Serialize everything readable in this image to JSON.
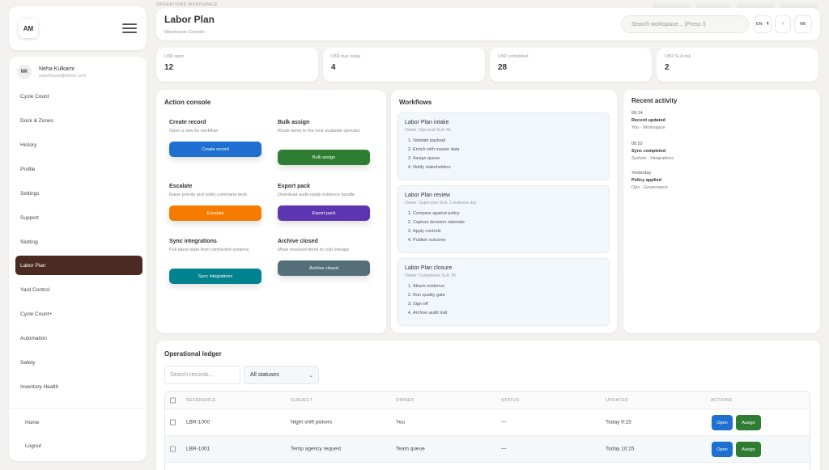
{
  "brand": {
    "logo": "AM",
    "menu_icon": "hamburger-icon"
  },
  "user": {
    "initials": "NK",
    "name": "Neha Kulkarni",
    "email": "warehouse@demo.com"
  },
  "nav": {
    "items": [
      "Cycle Count",
      "Dock & Zones",
      "History",
      "Profile",
      "Settings",
      "Support",
      "Slotting",
      "Labor Plan",
      "Yard Control",
      "Cycle Count+",
      "Automation",
      "Safety",
      "Inventory Health"
    ],
    "active": "Labor Plan",
    "footer": [
      "Home",
      "Logout"
    ]
  },
  "header": {
    "workspace_label": "OPERATIONS WORKSPACE",
    "title": "Labor Plan",
    "subtitle": "Warehouse Console",
    "search_placeholder": "Search workspace... (Press /)",
    "lang": "EN · ₹",
    "notif": "!",
    "avatar": "NK"
  },
  "kpis": [
    {
      "label": "LBR open",
      "value": "12"
    },
    {
      "label": "LBR due today",
      "value": "4"
    },
    {
      "label": "LBR completed",
      "value": "28"
    },
    {
      "label": "LBR SLA risk",
      "value": "2"
    }
  ],
  "action_console": {
    "title": "Action console",
    "actions": [
      {
        "title": "Create record",
        "desc": "Open a new lbr workflow",
        "button": "Create record",
        "color": "#1f6fd0"
      },
      {
        "title": "Bulk assign",
        "desc": "Route items to the next available operator",
        "button": "Bulk assign",
        "color": "#2e7d32"
      },
      {
        "title": "Escalate",
        "desc": "Raise priority and notify command desk",
        "button": "Escalate",
        "color": "#f57c00"
      },
      {
        "title": "Export pack",
        "desc": "Download audit-ready evidence bundle",
        "button": "Export pack",
        "color": "#5e35b1"
      },
      {
        "title": "Sync integrations",
        "desc": "Pull latest state from connected systems",
        "button": "Sync integrations",
        "color": "#00838f"
      },
      {
        "title": "Archive closed",
        "desc": "Move resolved items to cold storage",
        "button": "Archive closed",
        "color": "#546e7a"
      }
    ]
  },
  "workflows": {
    "title": "Workflows",
    "items": [
      {
        "title": "Labor Plan intake",
        "owner": "Owner: Ops lead    SLA: 4h",
        "steps": [
          "Validate payload",
          "Enrich with master data",
          "Assign queue",
          "Notify stakeholders"
        ]
      },
      {
        "title": "Labor Plan review",
        "owner": "Owner: Supervisor    SLA: 1 business day",
        "steps": [
          "Compare against policy",
          "Capture decision rationale",
          "Apply controls",
          "Publish outcome"
        ]
      },
      {
        "title": "Labor Plan closure",
        "owner": "Owner: Compliance    SLA: 2h",
        "steps": [
          "Attach evidence",
          "Run quality gate",
          "Sign off",
          "Archive audit trail"
        ]
      }
    ]
  },
  "recent_activity": {
    "title": "Recent activity",
    "items": [
      {
        "time": "09:14",
        "title": "Record updated",
        "sub": "You · Workspace"
      },
      {
        "time": "08:52",
        "title": "Sync completed",
        "sub": "System · Integrations"
      },
      {
        "time": "Yesterday",
        "title": "Policy applied",
        "sub": "Ops · Governance"
      }
    ]
  },
  "ledger": {
    "title": "Operational ledger",
    "search_placeholder": "Search records...",
    "status_filter": "All statuses",
    "columns": [
      "REFERENCE",
      "SUBJECT",
      "OWNER",
      "STATUS",
      "UPDATED",
      "ACTIONS"
    ],
    "rows": [
      {
        "ref": "LBR-1000",
        "subject": "Night shift pickers",
        "owner": "You",
        "status": "—",
        "updated": "Today 9:15"
      },
      {
        "ref": "LBR-1001",
        "subject": "Temp agency request",
        "owner": "Team queue",
        "status": "—",
        "updated": "Today 10:15"
      }
    ],
    "open_label": "Open",
    "assign_label": "Assign"
  }
}
